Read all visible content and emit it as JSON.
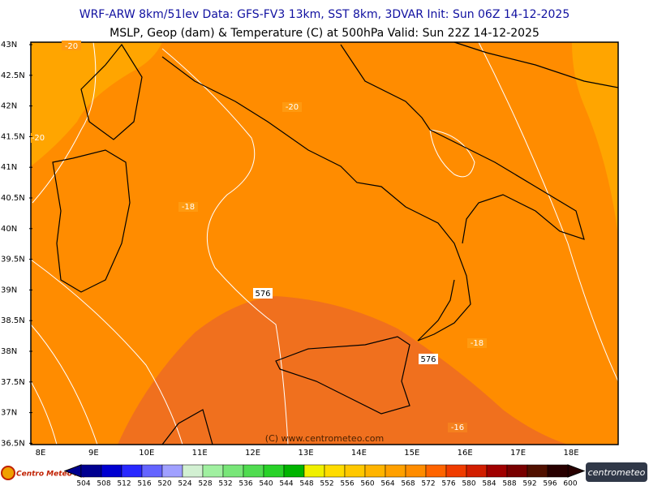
{
  "header": {
    "line1": "WRF-ARW 8km/51lev  Data: GFS-FV3 13km, SST 8km, 3DVAR  Init: Sun 06Z 14-12-2025",
    "line2": "MSLP, Geop (dam) & Temperature (C) at 500hPa  Valid: Sun 22Z 14-12-2025"
  },
  "map": {
    "lat_labels": [
      "43N",
      "42.5N",
      "42N",
      "41.5N",
      "41N",
      "40.5N",
      "40N",
      "39.5N",
      "39N",
      "38.5N",
      "38N",
      "37.5N",
      "37N",
      "36.5N"
    ],
    "lon_labels": [
      "8E",
      "9E",
      "10E",
      "11E",
      "12E",
      "13E",
      "14E",
      "15E",
      "16E",
      "17E",
      "18E"
    ],
    "contour_labels": [
      "-20",
      "-20",
      "-20",
      "-18",
      "576",
      "576",
      "-18",
      "-16"
    ],
    "credit": "(C) www.centrometeo.com"
  },
  "colorbar": {
    "colors": [
      "#000090",
      "#0000d0",
      "#2828ff",
      "#6464ff",
      "#a0a0ff",
      "#d2f0d2",
      "#a0f0a0",
      "#78e678",
      "#50dc50",
      "#28d228",
      "#00b400",
      "#f0f000",
      "#ffdc00",
      "#ffc800",
      "#ffb400",
      "#ffa000",
      "#ff8c00",
      "#ff6400",
      "#f03c00",
      "#d21e00",
      "#a00000",
      "#780000",
      "#501000",
      "#280000"
    ],
    "labels": [
      "504",
      "508",
      "512",
      "516",
      "520",
      "524",
      "528",
      "532",
      "536",
      "540",
      "544",
      "548",
      "552",
      "556",
      "560",
      "564",
      "568",
      "572",
      "576",
      "580",
      "584",
      "588",
      "592",
      "596",
      "600"
    ]
  },
  "logos": {
    "left": "Centro Meteo Aquila",
    "right": "centrometeo"
  }
}
